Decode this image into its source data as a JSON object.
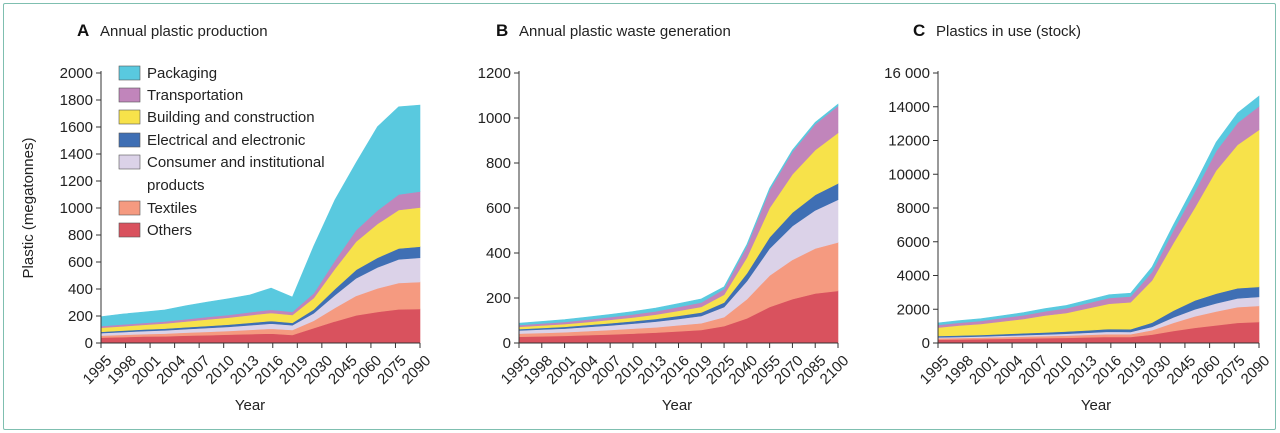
{
  "colors": {
    "packaging": "#59c9df",
    "transportation": "#c185bb",
    "building": "#f7e24a",
    "electrical": "#3f6fb4",
    "consumer": "#dbd2e8",
    "textiles": "#f59a80",
    "others": "#d9525e",
    "frame": "#7fbfb0"
  },
  "chart_data": [
    {
      "type": "area",
      "stacked": true,
      "letter": "A",
      "title": "Annual plastic production",
      "xlabel": "Year",
      "ylabel": "Plastic (megatonnes)",
      "ylim": [
        0,
        2000
      ],
      "yticks": [
        0,
        200,
        400,
        600,
        800,
        1000,
        1200,
        1400,
        1600,
        1800,
        2000
      ],
      "ytick_labels": [
        "0",
        "200",
        "400",
        "600",
        "800",
        "1000",
        "1200",
        "1400",
        "1600",
        "1800",
        "2000"
      ],
      "xtick_labels": [
        "1995",
        "1998",
        "2001",
        "2004",
        "2007",
        "2010",
        "2013",
        "2016",
        "2019",
        "2030",
        "2045",
        "2060",
        "2075",
        "2090"
      ],
      "x": [
        1995,
        1998,
        2001,
        2004,
        2007,
        2010,
        2013,
        2016,
        2019,
        2022,
        2030,
        2045,
        2060,
        2075,
        2090,
        2100
      ],
      "legend": [
        "Packaging",
        "Transportation",
        "Building and construction",
        "Electrical and electronic",
        "Consumer and institutional products",
        "Textiles",
        "Others"
      ],
      "series": [
        {
          "name": "Others",
          "key": "others",
          "values": [
            40,
            44,
            48,
            50,
            55,
            58,
            62,
            66,
            70,
            60,
            110,
            160,
            205,
            230,
            250,
            252
          ]
        },
        {
          "name": "Textiles",
          "key": "textiles",
          "values": [
            15,
            17,
            18,
            20,
            22,
            25,
            28,
            32,
            36,
            36,
            55,
            100,
            145,
            175,
            195,
            200
          ]
        },
        {
          "name": "Consumer and institutional products",
          "key": "consumer",
          "values": [
            18,
            20,
            22,
            24,
            26,
            28,
            30,
            34,
            38,
            36,
            55,
            95,
            130,
            155,
            175,
            180
          ]
        },
        {
          "name": "Electrical and electronic",
          "key": "electrical",
          "values": [
            10,
            11,
            12,
            13,
            14,
            15,
            16,
            18,
            19,
            18,
            28,
            45,
            62,
            72,
            80,
            82
          ]
        },
        {
          "name": "Building and construction",
          "key": "building",
          "values": [
            30,
            32,
            35,
            38,
            42,
            48,
            52,
            56,
            60,
            58,
            85,
            150,
            210,
            250,
            285,
            290
          ]
        },
        {
          "name": "Transportation",
          "key": "transportation",
          "values": [
            12,
            13,
            14,
            15,
            17,
            19,
            20,
            22,
            24,
            23,
            35,
            60,
            85,
            100,
            115,
            118
          ]
        },
        {
          "name": "Packaging",
          "key": "packaging",
          "values": [
            70,
            78,
            80,
            85,
            100,
            110,
            120,
            128,
            160,
            110,
            350,
            450,
            500,
            620,
            650,
            640
          ]
        }
      ]
    },
    {
      "type": "area",
      "stacked": true,
      "letter": "B",
      "title": "Annual plastic waste generation",
      "xlabel": "Year",
      "ylabel": "",
      "ylim": [
        0,
        1200
      ],
      "yticks": [
        0,
        200,
        400,
        600,
        800,
        1000,
        1200
      ],
      "ytick_labels": [
        "0",
        "200",
        "400",
        "600",
        "800",
        "1000",
        "1200"
      ],
      "xtick_labels": [
        "1995",
        "1998",
        "2001",
        "2004",
        "2007",
        "2010",
        "2013",
        "2016",
        "2019",
        "2025",
        "2040",
        "2055",
        "2070",
        "2085",
        "2100"
      ],
      "x": [
        1995,
        1998,
        2001,
        2004,
        2007,
        2010,
        2013,
        2016,
        2019,
        2025,
        2040,
        2055,
        2070,
        2085,
        2100
      ],
      "series": [
        {
          "name": "Others",
          "key": "others",
          "values": [
            28,
            30,
            32,
            35,
            38,
            42,
            46,
            52,
            58,
            75,
            110,
            160,
            195,
            220,
            232
          ]
        },
        {
          "name": "Textiles",
          "key": "textiles",
          "values": [
            14,
            15,
            16,
            18,
            20,
            22,
            24,
            27,
            30,
            40,
            85,
            140,
            175,
            200,
            215
          ]
        },
        {
          "name": "Consumer and institutional products",
          "key": "consumer",
          "values": [
            14,
            15,
            16,
            18,
            20,
            22,
            25,
            28,
            32,
            45,
            80,
            120,
            150,
            170,
            190
          ]
        },
        {
          "name": "Electrical and electronic",
          "key": "electrical",
          "values": [
            6,
            7,
            8,
            9,
            10,
            11,
            12,
            14,
            16,
            20,
            35,
            50,
            60,
            68,
            72
          ]
        },
        {
          "name": "Building and construction",
          "key": "building",
          "values": [
            10,
            11,
            12,
            13,
            15,
            17,
            19,
            22,
            25,
            35,
            70,
            130,
            170,
            200,
            225
          ]
        },
        {
          "name": "Transportation",
          "key": "transportation",
          "values": [
            8,
            9,
            10,
            11,
            12,
            13,
            15,
            17,
            19,
            25,
            50,
            80,
            100,
            115,
            120
          ]
        },
        {
          "name": "Packaging",
          "key": "packaging",
          "values": [
            8,
            9,
            10,
            11,
            12,
            13,
            14,
            15,
            16,
            10,
            8,
            8,
            8,
            8,
            8
          ]
        }
      ]
    },
    {
      "type": "area",
      "stacked": true,
      "letter": "C",
      "title": "Plastics in use (stock)",
      "xlabel": "Year",
      "ylabel": "",
      "ylim": [
        0,
        16000
      ],
      "yticks": [
        0,
        2000,
        4000,
        6000,
        8000,
        10000,
        12000,
        14000,
        16000
      ],
      "ytick_labels": [
        "0",
        "2000",
        "4000",
        "6000",
        "8000",
        "10000",
        "12000",
        "14000",
        "16 000"
      ],
      "xtick_labels": [
        "1995",
        "1998",
        "2001",
        "2004",
        "2007",
        "2010",
        "2013",
        "2016",
        "2019",
        "2030",
        "2045",
        "2060",
        "2075",
        "2090"
      ],
      "x": [
        1995,
        1998,
        2001,
        2004,
        2007,
        2010,
        2013,
        2016,
        2019,
        2022,
        2030,
        2045,
        2060,
        2075,
        2090,
        2100
      ],
      "series": [
        {
          "name": "Others",
          "key": "others",
          "values": [
            200,
            210,
            230,
            250,
            270,
            290,
            310,
            340,
            370,
            360,
            500,
            720,
            900,
            1050,
            1200,
            1250
          ]
        },
        {
          "name": "Textiles",
          "key": "textiles",
          "values": [
            80,
            85,
            90,
            100,
            110,
            120,
            130,
            145,
            160,
            160,
            260,
            480,
            680,
            820,
            930,
            950
          ]
        },
        {
          "name": "Consumer and institutional products",
          "key": "consumer",
          "values": [
            60,
            65,
            70,
            80,
            90,
            100,
            110,
            125,
            140,
            140,
            200,
            320,
            420,
            480,
            520,
            530
          ]
        },
        {
          "name": "Electrical and electronic",
          "key": "electrical",
          "values": [
            80,
            85,
            90,
            100,
            110,
            120,
            130,
            145,
            160,
            160,
            250,
            400,
            520,
            580,
            600,
            600
          ]
        },
        {
          "name": "Building and construction",
          "key": "building",
          "values": [
            500,
            600,
            650,
            750,
            850,
            1000,
            1100,
            1300,
            1500,
            1600,
            2500,
            4000,
            5500,
            7300,
            8500,
            9300
          ]
        },
        {
          "name": "Transportation",
          "key": "transportation",
          "values": [
            150,
            160,
            180,
            200,
            220,
            250,
            280,
            310,
            340,
            340,
            500,
            750,
            950,
            1150,
            1300,
            1400
          ]
        },
        {
          "name": "Packaging",
          "key": "packaging",
          "values": [
            120,
            125,
            130,
            140,
            150,
            160,
            170,
            180,
            190,
            190,
            290,
            330,
            430,
            520,
            580,
            600
          ]
        }
      ]
    }
  ]
}
